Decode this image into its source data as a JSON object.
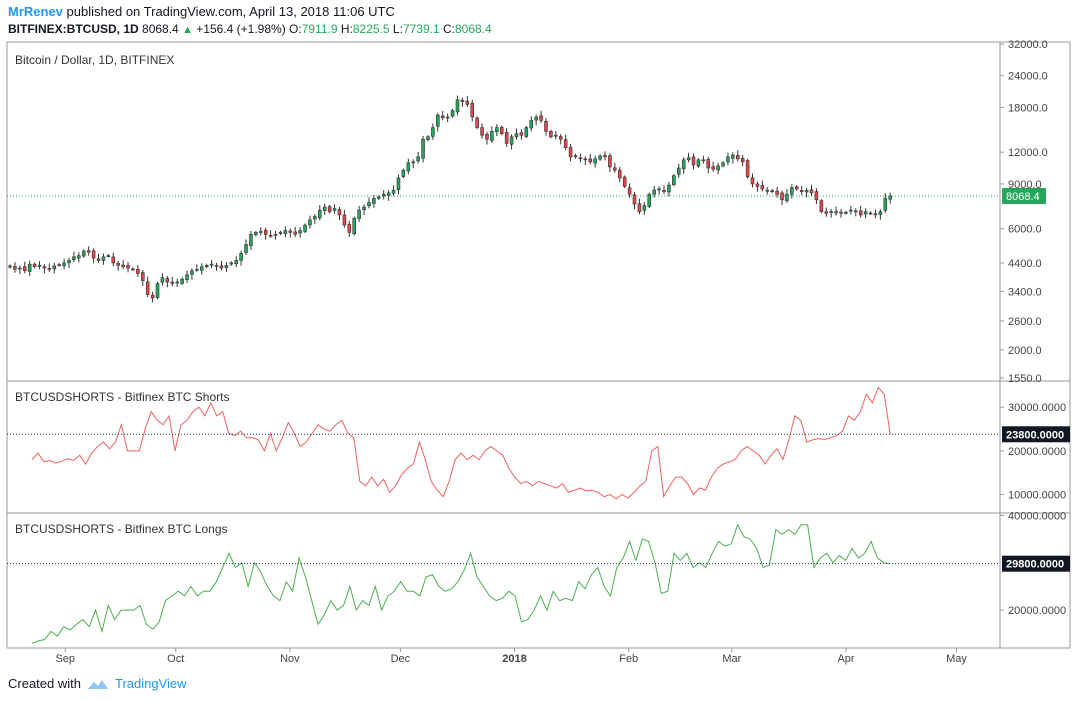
{
  "header": {
    "author": "MrRenev",
    "published_text": "published on TradingView.com, April 13, 2018 11:06 UTC",
    "symbol": "BITFINEX:BTCUSD, 1D",
    "last": "8068.4",
    "change_arrow": "▲",
    "change": "+156.4 (+1.98%)",
    "o_label": "O:",
    "o_val": "7911.9",
    "h_label": "H:",
    "h_val": "8225.5",
    "l_label": "L:",
    "l_val": "7739.1",
    "c_label": "C:",
    "c_val": "8068.4"
  },
  "footer": {
    "created_with": "Created with",
    "brand": "TradingView"
  },
  "colors": {
    "up": "#26a65b",
    "down": "#e0464c",
    "shorts": "#f06060",
    "longs": "#4caf50",
    "grid": "#e6e6e6",
    "badge_dark": "#131722"
  },
  "chart_data": [
    {
      "type": "candlestick",
      "title": "Bitcoin / Dollar, 1D, BITFINEX",
      "y_scale": "log",
      "ylim": [
        1550,
        32000
      ],
      "y_ticks": [
        "32000.0",
        "24000.0",
        "18000.0",
        "12000.0",
        "9000.0",
        "8068.4",
        "6000.0",
        "4400.0",
        "3400.0",
        "2600.0",
        "2000.0",
        "1550.0"
      ],
      "last_value": 8068.4,
      "x_ticks": [
        "Sep",
        "Oct",
        "Nov",
        "Dec",
        "2018",
        "Feb",
        "Mar",
        "Apr",
        "May"
      ],
      "date_range": [
        "2017-08-17",
        "2018-04-13"
      ],
      "x_axis_end": "2018-05-12",
      "close": [
        4280,
        4150,
        4200,
        4100,
        4350,
        4250,
        4300,
        4200,
        4150,
        4280,
        4320,
        4400,
        4500,
        4650,
        4700,
        4900,
        4850,
        4600,
        4500,
        4650,
        4700,
        4400,
        4300,
        4250,
        4200,
        4150,
        4000,
        3750,
        3300,
        3200,
        3650,
        3850,
        3700,
        3650,
        3700,
        3800,
        3950,
        4100,
        4150,
        4250,
        4300,
        4350,
        4300,
        4200,
        4300,
        4400,
        4500,
        4800,
        5200,
        5700,
        5800,
        5850,
        5700,
        5650,
        5700,
        5800,
        5900,
        5800,
        5700,
        5900,
        6200,
        6500,
        6700,
        7100,
        7300,
        7000,
        7200,
        6800,
        6200,
        5800,
        6600,
        7100,
        7300,
        7600,
        7900,
        8000,
        8200,
        8300,
        8500,
        9500,
        10200,
        10900,
        11000,
        11500,
        13500,
        13800,
        15000,
        16800,
        16400,
        16500,
        17500,
        19300,
        19000,
        18500,
        16500,
        15000,
        14000,
        13500,
        14500,
        15000,
        14200,
        13000,
        13800,
        14200,
        14000,
        15000,
        16000,
        16500,
        16000,
        14500,
        13800,
        14000,
        13500,
        12500,
        11500,
        11500,
        11300,
        11200,
        11000,
        11300,
        11600,
        11500,
        10500,
        10200,
        9500,
        8800,
        8200,
        7500,
        7000,
        7400,
        8200,
        8500,
        8600,
        8400,
        8900,
        9700,
        10400,
        11200,
        11400,
        10700,
        11200,
        11200,
        10400,
        10300,
        10600,
        10900,
        11500,
        11700,
        11300,
        11000,
        9600,
        9000,
        8800,
        8600,
        8500,
        8400,
        8200,
        7800,
        8200,
        8700,
        8600,
        8400,
        8500,
        8300,
        7800,
        7000,
        6900,
        7000,
        7000,
        6900,
        6950,
        7100,
        7050,
        6800,
        7000,
        6900,
        6800,
        7000,
        7900,
        8068
      ],
      "wick_range": [
        3000,
        20000
      ]
    },
    {
      "type": "line",
      "title": "BTCUSDSHORTS - Bitfinex BTC Shorts",
      "ylim": [
        6000,
        36000
      ],
      "y_ticks": [
        "30000.0000",
        "20000.0000",
        "10000.0000"
      ],
      "last_value": 23800,
      "last_label": "23800.0000",
      "values": [
        18000,
        19500,
        17500,
        17800,
        17200,
        17600,
        18200,
        17800,
        19000,
        17000,
        19500,
        21000,
        22000,
        20500,
        22000,
        26000,
        20000,
        20000,
        20000,
        25000,
        29000,
        27000,
        26000,
        28000,
        20000,
        26000,
        27000,
        29000,
        30000,
        28000,
        31000,
        28000,
        29000,
        24000,
        23500,
        24500,
        23000,
        23000,
        22500,
        20000,
        24000,
        20000,
        23000,
        26500,
        24000,
        21000,
        22000,
        24000,
        26000,
        25000,
        24500,
        26000,
        27000,
        24000,
        23000,
        13000,
        12000,
        14000,
        12000,
        13500,
        10500,
        12000,
        14500,
        16000,
        17000,
        22000,
        18000,
        13000,
        11000,
        9500,
        13000,
        18000,
        19500,
        18000,
        19000,
        18000,
        20000,
        21000,
        20000,
        19000,
        16000,
        14000,
        12500,
        13000,
        12000,
        13000,
        12500,
        12000,
        11500,
        12500,
        10500,
        11000,
        11500,
        10800,
        11000,
        10500,
        9500,
        10000,
        9000,
        10000,
        9200,
        10500,
        12000,
        13000,
        20000,
        21000,
        9500,
        12000,
        14000,
        14000,
        12500,
        10000,
        11500,
        11000,
        14000,
        16000,
        17000,
        17500,
        18000,
        20000,
        21000,
        20000,
        19000,
        17000,
        19000,
        20500,
        18000,
        22500,
        28000,
        27000,
        22000,
        22500,
        22800,
        22600,
        23000,
        23500,
        24500,
        28000,
        27000,
        29000,
        33000,
        31000,
        34500,
        33000,
        23800
      ]
    },
    {
      "type": "line",
      "title": "BTCUSDSHORTS - Bitfinex BTC Longs",
      "ylim": [
        12000,
        40500
      ],
      "y_ticks": [
        "40000.0000",
        "20000.0000"
      ],
      "last_value": 29800,
      "last_label": "29800.0000",
      "values": [
        13000,
        13500,
        13800,
        15500,
        14500,
        16500,
        15800,
        17000,
        18000,
        16500,
        20000,
        15500,
        21000,
        18000,
        20000,
        20000,
        20000,
        21000,
        17000,
        16000,
        17500,
        22000,
        23000,
        24000,
        23000,
        25000,
        23000,
        24000,
        24000,
        26000,
        29000,
        32000,
        29000,
        30000,
        25000,
        30000,
        28000,
        25000,
        23000,
        22000,
        26000,
        24000,
        31000,
        27000,
        22000,
        17000,
        19000,
        22000,
        20000,
        21000,
        25000,
        20000,
        22000,
        21000,
        25000,
        20000,
        23000,
        24000,
        26000,
        24000,
        24000,
        23000,
        27000,
        27500,
        25000,
        24000,
        24500,
        26000,
        28500,
        32000,
        27000,
        25000,
        23000,
        22000,
        22500,
        24000,
        23000,
        17500,
        18000,
        20000,
        23000,
        20000,
        24000,
        22000,
        22500,
        22000,
        26000,
        24500,
        27500,
        29000,
        25000,
        23000,
        29000,
        31000,
        34500,
        30500,
        35000,
        34500,
        30000,
        23500,
        24000,
        32000,
        30500,
        32000,
        29000,
        30000,
        29000,
        32000,
        34500,
        33500,
        34000,
        38000,
        35500,
        35000,
        33000,
        29000,
        29500,
        37000,
        36000,
        37000,
        36000,
        38000,
        38000,
        29000,
        31000,
        32000,
        30000,
        31500,
        30500,
        33000,
        31000,
        32000,
        34500,
        31000,
        30000,
        29800
      ]
    }
  ]
}
